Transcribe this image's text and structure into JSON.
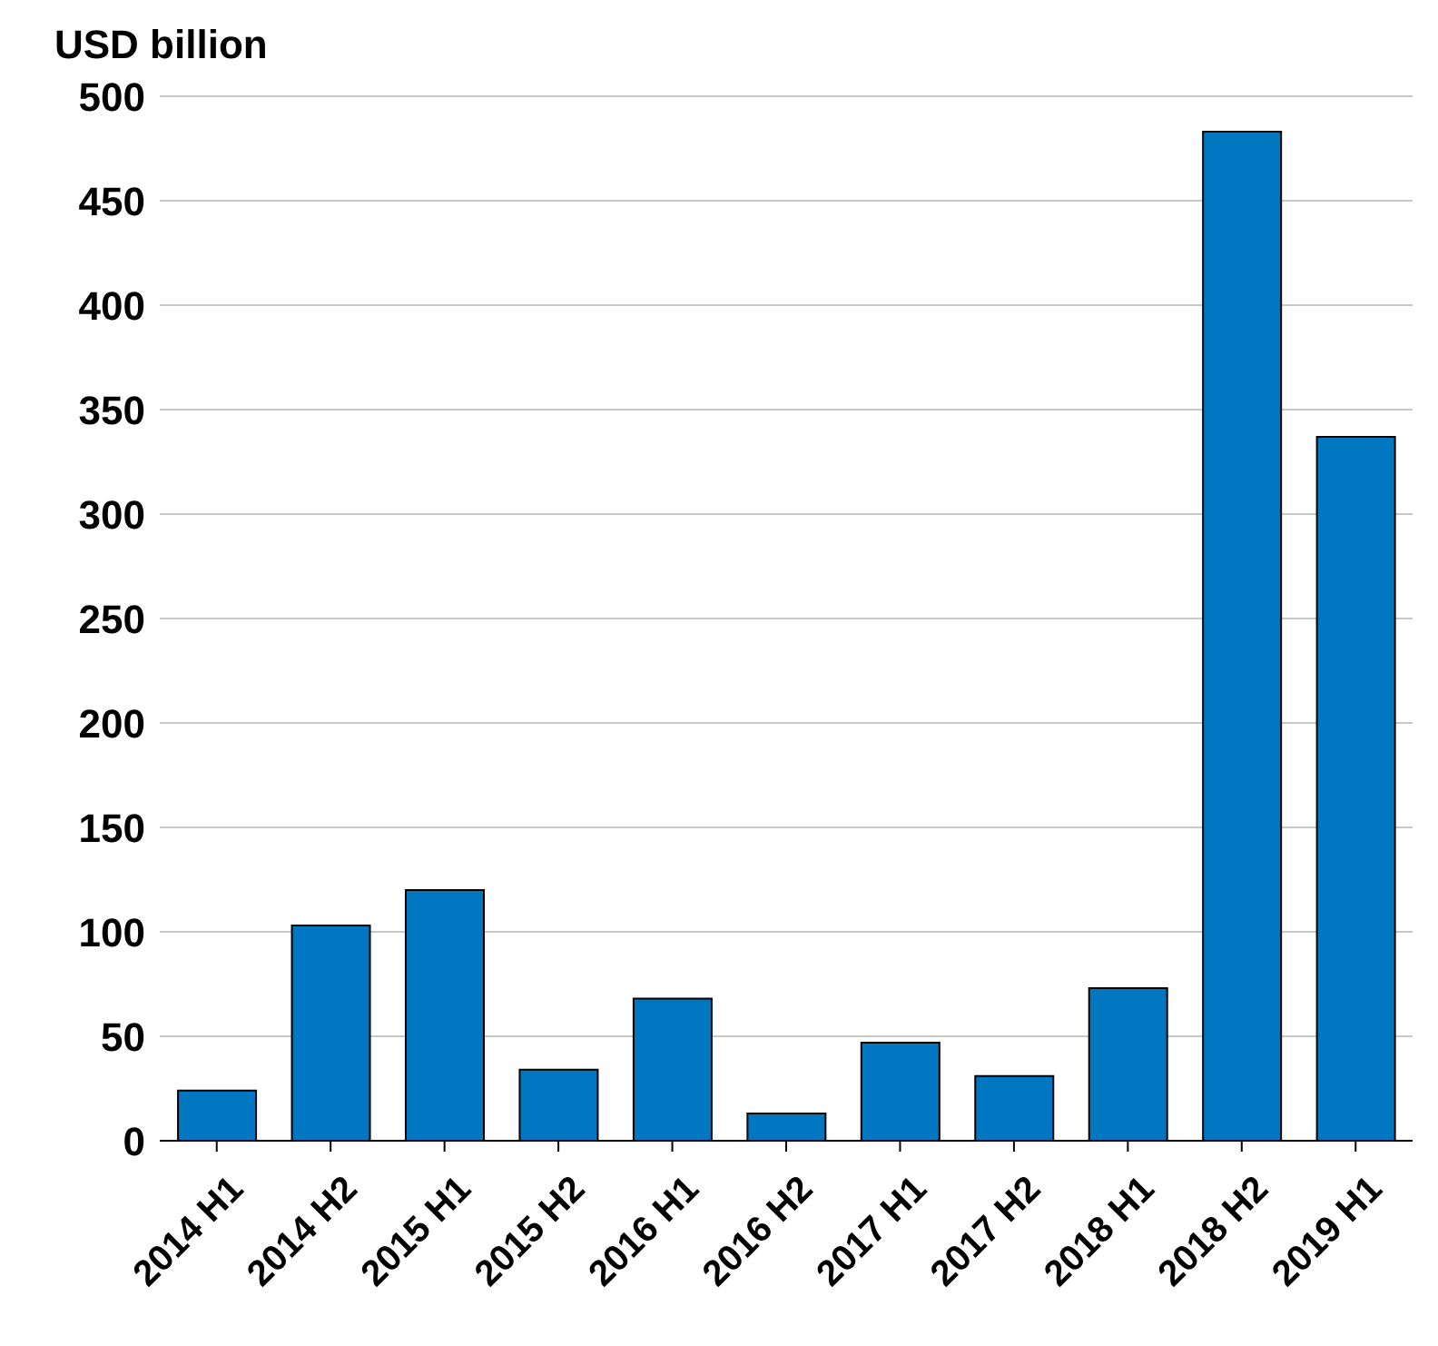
{
  "chart_data": {
    "type": "bar",
    "ylabel": "USD billion",
    "categories": [
      "2014 H1",
      "2014 H2",
      "2015 H1",
      "2015 H2",
      "2016 H1",
      "2016 H2",
      "2017 H1",
      "2017 H2",
      "2018 H1",
      "2018 H2",
      "2019 H1"
    ],
    "values": [
      24,
      103,
      120,
      34,
      68,
      13,
      47,
      31,
      73,
      483,
      337
    ],
    "color": "#0077c0",
    "ylim": [
      0,
      500
    ],
    "yticks": [
      0,
      50,
      100,
      150,
      200,
      250,
      300,
      350,
      400,
      450,
      500
    ],
    "grid": "y"
  }
}
